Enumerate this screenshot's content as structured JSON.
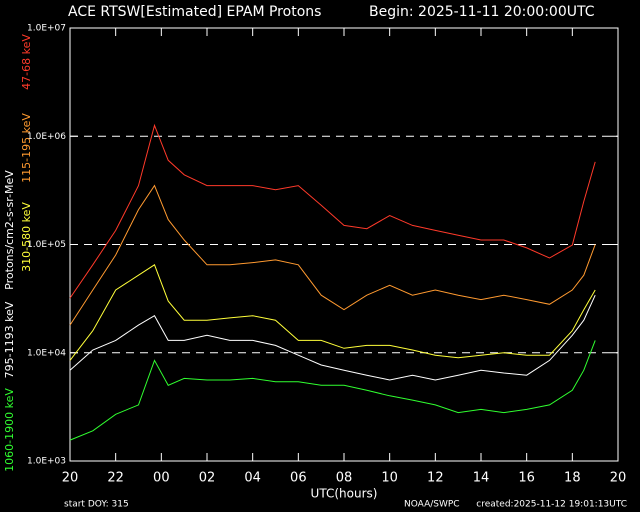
{
  "chart_data": {
    "type": "line",
    "title": "ACE RTSW[Estimated] EPAM Protons",
    "subtitle": "Begin: 2025-11-11 20:00:00UTC",
    "x_label": "UTC(hours)",
    "y_label": "Protons/cm2-s-sr-MeV",
    "footer_left": "start DOY:  315",
    "footer_center": "NOAA/SWPC",
    "footer_right": "created:2025-11-12 19:01:13UTC",
    "log_y": true,
    "grid": true,
    "x": [
      0,
      1,
      2,
      3,
      3.7,
      4.3,
      5,
      6,
      7,
      8,
      9,
      10,
      11,
      12,
      13,
      14,
      15,
      16,
      17,
      18,
      19,
      20,
      21,
      22,
      22.5,
      23
    ],
    "series": [
      {
        "name": "47-68 keV",
        "color": "#ff3a2a",
        "values": [
          32000,
          65000,
          135000,
          350000,
          1260000,
          600000,
          440000,
          350000,
          350000,
          350000,
          320000,
          350000,
          230000,
          150000,
          140000,
          185000,
          150000,
          135000,
          122000,
          110000,
          110000,
          93000,
          75000,
          99000,
          250000,
          580000
        ]
      },
      {
        "name": "115-195 keV",
        "color": "#ff9a30",
        "values": [
          18000,
          38000,
          80000,
          210000,
          350000,
          170000,
          110000,
          65000,
          65000,
          68000,
          72000,
          65000,
          34000,
          25000,
          34000,
          42000,
          34000,
          38000,
          34000,
          31000,
          34000,
          31000,
          28000,
          38000,
          52000,
          100000
        ]
      },
      {
        "name": "310-580 keV",
        "color": "#ffff3a",
        "values": [
          8500,
          16000,
          38000,
          52000,
          65000,
          30000,
          20000,
          20000,
          21000,
          22000,
          20000,
          13000,
          13000,
          11000,
          11700,
          11700,
          10600,
          9500,
          9000,
          9500,
          10000,
          9500,
          9500,
          16000,
          25000,
          38000
        ]
      },
      {
        "name": "795-1193 keV",
        "color": "#ffffff",
        "values": [
          6900,
          10600,
          13000,
          18000,
          22000,
          13000,
          13000,
          14500,
          13000,
          13000,
          11700,
          9500,
          7700,
          6900,
          6200,
          5600,
          6200,
          5600,
          6200,
          6900,
          6500,
          6200,
          8500,
          14500,
          20000,
          34000
        ]
      },
      {
        "name": "1060-1900 keV",
        "color": "#30ff30",
        "values": [
          1560,
          1900,
          2700,
          3300,
          8500,
          5000,
          5800,
          5600,
          5600,
          5800,
          5400,
          5400,
          5000,
          5000,
          4500,
          4000,
          3650,
          3300,
          2800,
          3000,
          2800,
          3000,
          3300,
          4500,
          6900,
          13000
        ]
      }
    ],
    "xlim": [
      0,
      24
    ],
    "xticks": [
      {
        "value": 0,
        "label": "20"
      },
      {
        "value": 2,
        "label": "22"
      },
      {
        "value": 4,
        "label": "00"
      },
      {
        "value": 6,
        "label": "02"
      },
      {
        "value": 8,
        "label": "04"
      },
      {
        "value": 10,
        "label": "06"
      },
      {
        "value": 12,
        "label": "08"
      },
      {
        "value": 14,
        "label": "10"
      },
      {
        "value": 16,
        "label": "12"
      },
      {
        "value": 18,
        "label": "14"
      },
      {
        "value": 20,
        "label": "16"
      },
      {
        "value": 22,
        "label": "18"
      },
      {
        "value": 24,
        "label": "20"
      }
    ],
    "ylim": [
      1000,
      10000000
    ],
    "yticks": [
      {
        "value": 1000,
        "label": "1.0E+03"
      },
      {
        "value": 10000,
        "label": "1.0E+04"
      },
      {
        "value": 100000,
        "label": "1.0E+05"
      },
      {
        "value": 1000000,
        "label": "1.0E+06"
      },
      {
        "value": 10000000,
        "label": "1.0E+07"
      }
    ]
  }
}
